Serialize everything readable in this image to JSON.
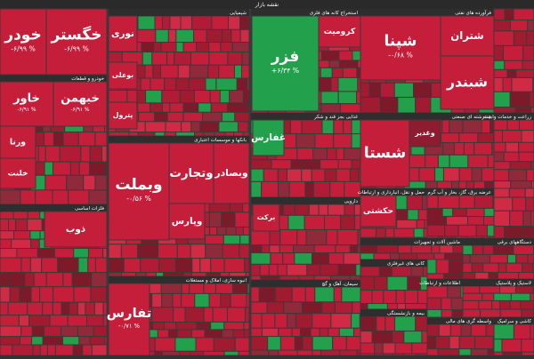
{
  "title": "نقشه بازار",
  "sectors": [
    {
      "name": "خودرو و قطعات",
      "tiles": [
        {
          "symbol": "خودر",
          "change": "-۶/۹۹ %"
        },
        {
          "symbol": "خگستر",
          "change": "-۶/۹۹ %"
        },
        {
          "symbol": "خاور",
          "change": "-۶/۹۱ %"
        },
        {
          "symbol": "خبهمن",
          "change": "-۶/۹۱ %"
        },
        {
          "symbol": "ورنا"
        },
        {
          "symbol": "خلنت"
        }
      ]
    },
    {
      "name": "فلزات اساسی",
      "tiles": [
        {
          "symbol": "ذوب"
        }
      ]
    },
    {
      "name": "شیمیایی",
      "tiles": [
        {
          "symbol": "نوری"
        },
        {
          "symbol": "بوعلی"
        },
        {
          "symbol": "پترول"
        }
      ]
    },
    {
      "name": "بانکها و موسسات اعتباری",
      "tiles": [
        {
          "symbol": "وبملت",
          "change": "-۰/۵۶ %"
        },
        {
          "symbol": "وتجارت"
        },
        {
          "symbol": "وبصادر"
        },
        {
          "symbol": "وپارس"
        }
      ]
    },
    {
      "name": "انبوه سازی، املاک و مستغلات",
      "tiles": [
        {
          "symbol": "تفارس",
          "change": "-۰/۷۱ %"
        }
      ]
    },
    {
      "name": "استخراج کانه های فلزی",
      "tiles": [
        {
          "symbol": "فزر",
          "change": "+۶/۳۴ %"
        },
        {
          "symbol": "کرومیت"
        }
      ]
    },
    {
      "name": "غذایی بجز قند و شکر",
      "tiles": [
        {
          "symbol": "غفارس"
        }
      ]
    },
    {
      "name": "دارویی",
      "tiles": [
        {
          "symbol": "برکت"
        }
      ]
    },
    {
      "name": "سیمان، آهک و گچ",
      "tiles": []
    },
    {
      "name": "فرآورده های نفتی",
      "tiles": [
        {
          "symbol": "شپنا",
          "change": "-۰/۶۸ %"
        },
        {
          "symbol": "شتران"
        },
        {
          "symbol": "شبندر"
        }
      ]
    },
    {
      "name": "چندرشته ای صنعتی",
      "tiles": [
        {
          "symbol": "شستا"
        },
        {
          "symbol": "وغدیر"
        }
      ]
    },
    {
      "name": "حمل و نقل، انبارداری و ارتباطات",
      "tiles": [
        {
          "symbol": "حکشتی"
        }
      ]
    },
    {
      "name": "عرضه برق، گاز، بخار و آب گرم",
      "tiles": []
    },
    {
      "name": "زراعت و خدمات وابسته",
      "tiles": []
    },
    {
      "name": "ماشین آلات و تجهیزات",
      "tiles": []
    },
    {
      "name": "دستگاههای برقی",
      "tiles": []
    },
    {
      "name": "کانی های غیرفلزی",
      "tiles": []
    },
    {
      "name": "بیمه و بازنشستگی",
      "tiles": []
    },
    {
      "name": "واسطه گری های مالی",
      "tiles": []
    },
    {
      "name": "اطلاعات و ارتباطات",
      "tiles": []
    },
    {
      "name": "لاستیک و پلاستیک",
      "tiles": []
    },
    {
      "name": "کاشی و سرامیک",
      "tiles": []
    }
  ]
}
